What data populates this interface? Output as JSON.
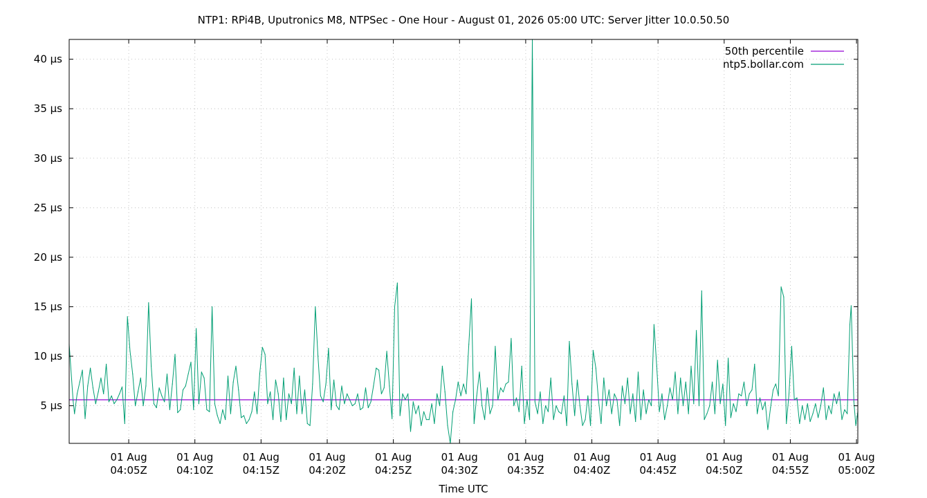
{
  "chart_data": {
    "type": "line",
    "title": "NTP1: RPi4B, Uputronics M8, NTPSec - One Hour - August 01, 2026 05:00 UTC: Server Jitter 10.0.50.50",
    "xlabel": "Time UTC",
    "ylabel": "",
    "x_unit": "minutes after 04:00 UTC",
    "xlim": [
      0.5,
      60.1
    ],
    "ylim": [
      1.2,
      42.0
    ],
    "grid": true,
    "legend_position": "top-right",
    "x_ticks": [
      {
        "x": 5,
        "line1": "01 Aug",
        "line2": "04:05Z"
      },
      {
        "x": 10,
        "line1": "01 Aug",
        "line2": "04:10Z"
      },
      {
        "x": 15,
        "line1": "01 Aug",
        "line2": "04:15Z"
      },
      {
        "x": 20,
        "line1": "01 Aug",
        "line2": "04:20Z"
      },
      {
        "x": 25,
        "line1": "01 Aug",
        "line2": "04:25Z"
      },
      {
        "x": 30,
        "line1": "01 Aug",
        "line2": "04:30Z"
      },
      {
        "x": 35,
        "line1": "01 Aug",
        "line2": "04:35Z"
      },
      {
        "x": 40,
        "line1": "01 Aug",
        "line2": "04:40Z"
      },
      {
        "x": 45,
        "line1": "01 Aug",
        "line2": "04:45Z"
      },
      {
        "x": 50,
        "line1": "01 Aug",
        "line2": "04:50Z"
      },
      {
        "x": 55,
        "line1": "01 Aug",
        "line2": "04:55Z"
      },
      {
        "x": 60,
        "line1": "01 Aug",
        "line2": "05:00Z"
      }
    ],
    "y_ticks": [
      {
        "y": 5,
        "label": "5 µs"
      },
      {
        "y": 10,
        "label": "10 µs"
      },
      {
        "y": 15,
        "label": "15 µs"
      },
      {
        "y": 20,
        "label": "20 µs"
      },
      {
        "y": 25,
        "label": "25 µs"
      },
      {
        "y": 30,
        "label": "30 µs"
      },
      {
        "y": 35,
        "label": "35 µs"
      },
      {
        "y": 40,
        "label": "40 µs"
      }
    ],
    "series": [
      {
        "name": "50th percentile",
        "color": "#9400d3",
        "kind": "hline",
        "y": 5.6
      },
      {
        "name": "ntp5.bollar.com",
        "color": "#009e73",
        "kind": "line",
        "points": [
          [
            0.5,
            11.2
          ],
          [
            0.8,
            5.5
          ],
          [
            0.9,
            4.2
          ],
          [
            1.1,
            6.2
          ],
          [
            1.3,
            7.4
          ],
          [
            1.5,
            8.6
          ],
          [
            1.7,
            3.7
          ],
          [
            1.9,
            7.0
          ],
          [
            2.1,
            8.8
          ],
          [
            2.3,
            6.8
          ],
          [
            2.5,
            5.2
          ],
          [
            2.7,
            6.4
          ],
          [
            2.9,
            7.8
          ],
          [
            3.1,
            6.2
          ],
          [
            3.3,
            9.2
          ],
          [
            3.5,
            5.4
          ],
          [
            3.7,
            6.0
          ],
          [
            3.9,
            5.2
          ],
          [
            4.1,
            5.6
          ],
          [
            4.3,
            6.2
          ],
          [
            4.5,
            6.9
          ],
          [
            4.7,
            3.2
          ],
          [
            4.9,
            14.0
          ],
          [
            5.1,
            10.5
          ],
          [
            5.3,
            8.2
          ],
          [
            5.5,
            5.0
          ],
          [
            5.7,
            6.4
          ],
          [
            5.9,
            7.8
          ],
          [
            6.1,
            5.0
          ],
          [
            6.3,
            7.0
          ],
          [
            6.5,
            15.4
          ],
          [
            6.7,
            9.0
          ],
          [
            6.9,
            5.2
          ],
          [
            7.1,
            4.8
          ],
          [
            7.3,
            6.8
          ],
          [
            7.5,
            6.0
          ],
          [
            7.7,
            5.4
          ],
          [
            7.9,
            8.2
          ],
          [
            8.1,
            4.6
          ],
          [
            8.3,
            7.2
          ],
          [
            8.5,
            10.2
          ],
          [
            8.7,
            4.3
          ],
          [
            8.9,
            4.6
          ],
          [
            9.1,
            6.6
          ],
          [
            9.3,
            7.0
          ],
          [
            9.5,
            8.2
          ],
          [
            9.7,
            9.4
          ],
          [
            9.9,
            4.6
          ],
          [
            10.1,
            12.8
          ],
          [
            10.3,
            5.2
          ],
          [
            10.5,
            8.4
          ],
          [
            10.7,
            7.8
          ],
          [
            10.9,
            4.6
          ],
          [
            11.1,
            4.4
          ],
          [
            11.3,
            15.0
          ],
          [
            11.5,
            5.2
          ],
          [
            11.7,
            4.0
          ],
          [
            11.9,
            3.2
          ],
          [
            12.1,
            4.6
          ],
          [
            12.3,
            3.6
          ],
          [
            12.5,
            8.0
          ],
          [
            12.7,
            4.2
          ],
          [
            12.9,
            7.4
          ],
          [
            13.1,
            9.0
          ],
          [
            13.3,
            6.6
          ],
          [
            13.5,
            3.8
          ],
          [
            13.7,
            4.0
          ],
          [
            13.9,
            3.2
          ],
          [
            14.1,
            3.6
          ],
          [
            14.3,
            4.4
          ],
          [
            14.5,
            6.4
          ],
          [
            14.7,
            4.2
          ],
          [
            14.9,
            8.2
          ],
          [
            15.1,
            10.9
          ],
          [
            15.3,
            10.2
          ],
          [
            15.5,
            5.2
          ],
          [
            15.7,
            6.4
          ],
          [
            15.9,
            3.6
          ],
          [
            16.1,
            7.6
          ],
          [
            16.3,
            6.2
          ],
          [
            16.5,
            3.4
          ],
          [
            16.7,
            7.8
          ],
          [
            16.9,
            3.6
          ],
          [
            17.1,
            6.2
          ],
          [
            17.3,
            5.2
          ],
          [
            17.5,
            8.8
          ],
          [
            17.7,
            4.2
          ],
          [
            17.9,
            8.0
          ],
          [
            18.1,
            4.2
          ],
          [
            18.3,
            6.6
          ],
          [
            18.5,
            3.2
          ],
          [
            18.7,
            3.0
          ],
          [
            18.9,
            7.2
          ],
          [
            19.1,
            15.0
          ],
          [
            19.3,
            10.0
          ],
          [
            19.5,
            6.0
          ],
          [
            19.7,
            5.4
          ],
          [
            19.9,
            7.2
          ],
          [
            20.1,
            10.8
          ],
          [
            20.3,
            4.6
          ],
          [
            20.5,
            7.6
          ],
          [
            20.7,
            5.0
          ],
          [
            20.9,
            4.6
          ],
          [
            21.1,
            7.0
          ],
          [
            21.3,
            5.2
          ],
          [
            21.5,
            6.2
          ],
          [
            21.7,
            5.6
          ],
          [
            21.9,
            5.0
          ],
          [
            22.1,
            5.2
          ],
          [
            22.3,
            6.2
          ],
          [
            22.5,
            4.6
          ],
          [
            22.7,
            4.8
          ],
          [
            22.9,
            6.8
          ],
          [
            23.1,
            4.8
          ],
          [
            23.3,
            5.4
          ],
          [
            23.5,
            7.0
          ],
          [
            23.7,
            8.8
          ],
          [
            23.9,
            8.6
          ],
          [
            24.1,
            6.2
          ],
          [
            24.3,
            6.8
          ],
          [
            24.5,
            10.5
          ],
          [
            24.7,
            7.0
          ],
          [
            24.9,
            3.7
          ],
          [
            25.1,
            15.0
          ],
          [
            25.3,
            17.4
          ],
          [
            25.5,
            4.0
          ],
          [
            25.7,
            6.2
          ],
          [
            25.9,
            5.6
          ],
          [
            26.1,
            6.2
          ],
          [
            26.3,
            2.4
          ],
          [
            26.5,
            5.4
          ],
          [
            26.7,
            4.2
          ],
          [
            26.9,
            5.0
          ],
          [
            27.1,
            3.0
          ],
          [
            27.3,
            4.4
          ],
          [
            27.5,
            3.6
          ],
          [
            27.7,
            3.6
          ],
          [
            27.9,
            5.2
          ],
          [
            28.1,
            3.2
          ],
          [
            28.3,
            6.2
          ],
          [
            28.5,
            5.0
          ],
          [
            28.7,
            9.0
          ],
          [
            28.9,
            6.4
          ],
          [
            29.1,
            3.0
          ],
          [
            29.3,
            1.2
          ],
          [
            29.5,
            4.4
          ],
          [
            29.7,
            5.6
          ],
          [
            29.9,
            7.4
          ],
          [
            30.1,
            6.0
          ],
          [
            30.3,
            7.2
          ],
          [
            30.5,
            6.2
          ],
          [
            30.7,
            11.2
          ],
          [
            30.9,
            15.8
          ],
          [
            31.1,
            3.2
          ],
          [
            31.3,
            6.0
          ],
          [
            31.5,
            8.4
          ],
          [
            31.7,
            5.0
          ],
          [
            31.9,
            3.6
          ],
          [
            32.1,
            6.8
          ],
          [
            32.3,
            4.2
          ],
          [
            32.5,
            5.0
          ],
          [
            32.7,
            11.0
          ],
          [
            32.9,
            5.6
          ],
          [
            33.1,
            6.8
          ],
          [
            33.3,
            6.4
          ],
          [
            33.5,
            7.2
          ],
          [
            33.7,
            7.4
          ],
          [
            33.9,
            11.8
          ],
          [
            34.1,
            5.0
          ],
          [
            34.3,
            5.8
          ],
          [
            34.5,
            4.4
          ],
          [
            34.7,
            9.0
          ],
          [
            34.9,
            3.2
          ],
          [
            35.1,
            5.6
          ],
          [
            35.3,
            3.6
          ],
          [
            35.5,
            42.0
          ],
          [
            35.7,
            5.4
          ],
          [
            35.9,
            4.2
          ],
          [
            36.1,
            6.4
          ],
          [
            36.3,
            3.2
          ],
          [
            36.5,
            5.0
          ],
          [
            36.7,
            4.4
          ],
          [
            36.9,
            7.8
          ],
          [
            37.1,
            3.6
          ],
          [
            37.3,
            5.0
          ],
          [
            37.5,
            4.4
          ],
          [
            37.7,
            4.2
          ],
          [
            37.9,
            6.0
          ],
          [
            38.1,
            3.0
          ],
          [
            38.3,
            11.5
          ],
          [
            38.5,
            7.2
          ],
          [
            38.7,
            4.0
          ],
          [
            38.9,
            7.6
          ],
          [
            39.1,
            5.0
          ],
          [
            39.3,
            3.0
          ],
          [
            39.5,
            3.6
          ],
          [
            39.7,
            6.0
          ],
          [
            39.9,
            3.0
          ],
          [
            40.1,
            10.6
          ],
          [
            40.3,
            8.8
          ],
          [
            40.5,
            5.6
          ],
          [
            40.7,
            3.2
          ],
          [
            40.9,
            7.8
          ],
          [
            41.1,
            5.0
          ],
          [
            41.3,
            6.6
          ],
          [
            41.5,
            4.2
          ],
          [
            41.7,
            6.2
          ],
          [
            41.9,
            5.6
          ],
          [
            42.1,
            3.0
          ],
          [
            42.3,
            7.0
          ],
          [
            42.5,
            5.2
          ],
          [
            42.7,
            7.8
          ],
          [
            42.9,
            4.2
          ],
          [
            43.1,
            6.2
          ],
          [
            43.3,
            3.4
          ],
          [
            43.5,
            8.4
          ],
          [
            43.7,
            3.6
          ],
          [
            43.9,
            6.6
          ],
          [
            44.1,
            4.2
          ],
          [
            44.3,
            5.6
          ],
          [
            44.5,
            5.0
          ],
          [
            44.7,
            13.2
          ],
          [
            44.9,
            9.0
          ],
          [
            45.1,
            4.4
          ],
          [
            45.3,
            6.2
          ],
          [
            45.5,
            3.6
          ],
          [
            45.7,
            5.0
          ],
          [
            45.9,
            6.8
          ],
          [
            46.1,
            5.6
          ],
          [
            46.3,
            8.4
          ],
          [
            46.5,
            4.2
          ],
          [
            46.7,
            7.8
          ],
          [
            46.9,
            5.0
          ],
          [
            47.1,
            7.4
          ],
          [
            47.3,
            4.2
          ],
          [
            47.5,
            9.0
          ],
          [
            47.7,
            5.2
          ],
          [
            47.9,
            12.6
          ],
          [
            48.1,
            5.0
          ],
          [
            48.3,
            16.6
          ],
          [
            48.5,
            3.6
          ],
          [
            48.7,
            4.2
          ],
          [
            48.9,
            5.0
          ],
          [
            49.1,
            7.4
          ],
          [
            49.3,
            4.2
          ],
          [
            49.5,
            9.6
          ],
          [
            49.7,
            5.2
          ],
          [
            49.9,
            7.2
          ],
          [
            50.1,
            3.0
          ],
          [
            50.3,
            9.8
          ],
          [
            50.5,
            3.8
          ],
          [
            50.7,
            5.2
          ],
          [
            50.9,
            4.4
          ],
          [
            51.1,
            6.2
          ],
          [
            51.3,
            6.0
          ],
          [
            51.5,
            7.4
          ],
          [
            51.7,
            5.0
          ],
          [
            51.9,
            6.2
          ],
          [
            52.1,
            6.6
          ],
          [
            52.3,
            9.2
          ],
          [
            52.5,
            4.2
          ],
          [
            52.7,
            5.8
          ],
          [
            52.9,
            4.6
          ],
          [
            53.1,
            5.4
          ],
          [
            53.3,
            2.6
          ],
          [
            53.5,
            4.8
          ],
          [
            53.7,
            6.6
          ],
          [
            53.9,
            7.2
          ],
          [
            54.1,
            6.0
          ],
          [
            54.3,
            17.0
          ],
          [
            54.5,
            16.0
          ],
          [
            54.7,
            3.2
          ],
          [
            54.9,
            6.2
          ],
          [
            55.1,
            11.0
          ],
          [
            55.3,
            5.6
          ],
          [
            55.5,
            5.8
          ],
          [
            55.7,
            3.2
          ],
          [
            55.9,
            5.0
          ],
          [
            56.1,
            3.6
          ],
          [
            56.3,
            5.2
          ],
          [
            56.5,
            3.4
          ],
          [
            56.7,
            4.2
          ],
          [
            56.9,
            5.2
          ],
          [
            57.1,
            3.8
          ],
          [
            57.3,
            5.0
          ],
          [
            57.5,
            6.8
          ],
          [
            57.7,
            3.6
          ],
          [
            57.9,
            5.0
          ],
          [
            58.1,
            4.2
          ],
          [
            58.3,
            6.2
          ],
          [
            58.5,
            5.2
          ],
          [
            58.7,
            6.4
          ],
          [
            58.9,
            3.6
          ],
          [
            59.1,
            4.6
          ],
          [
            59.3,
            4.2
          ],
          [
            59.5,
            13.2
          ],
          [
            59.6,
            15.1
          ],
          [
            59.8,
            5.4
          ],
          [
            59.95,
            3.0
          ],
          [
            60.1,
            4.4
          ]
        ]
      }
    ]
  }
}
